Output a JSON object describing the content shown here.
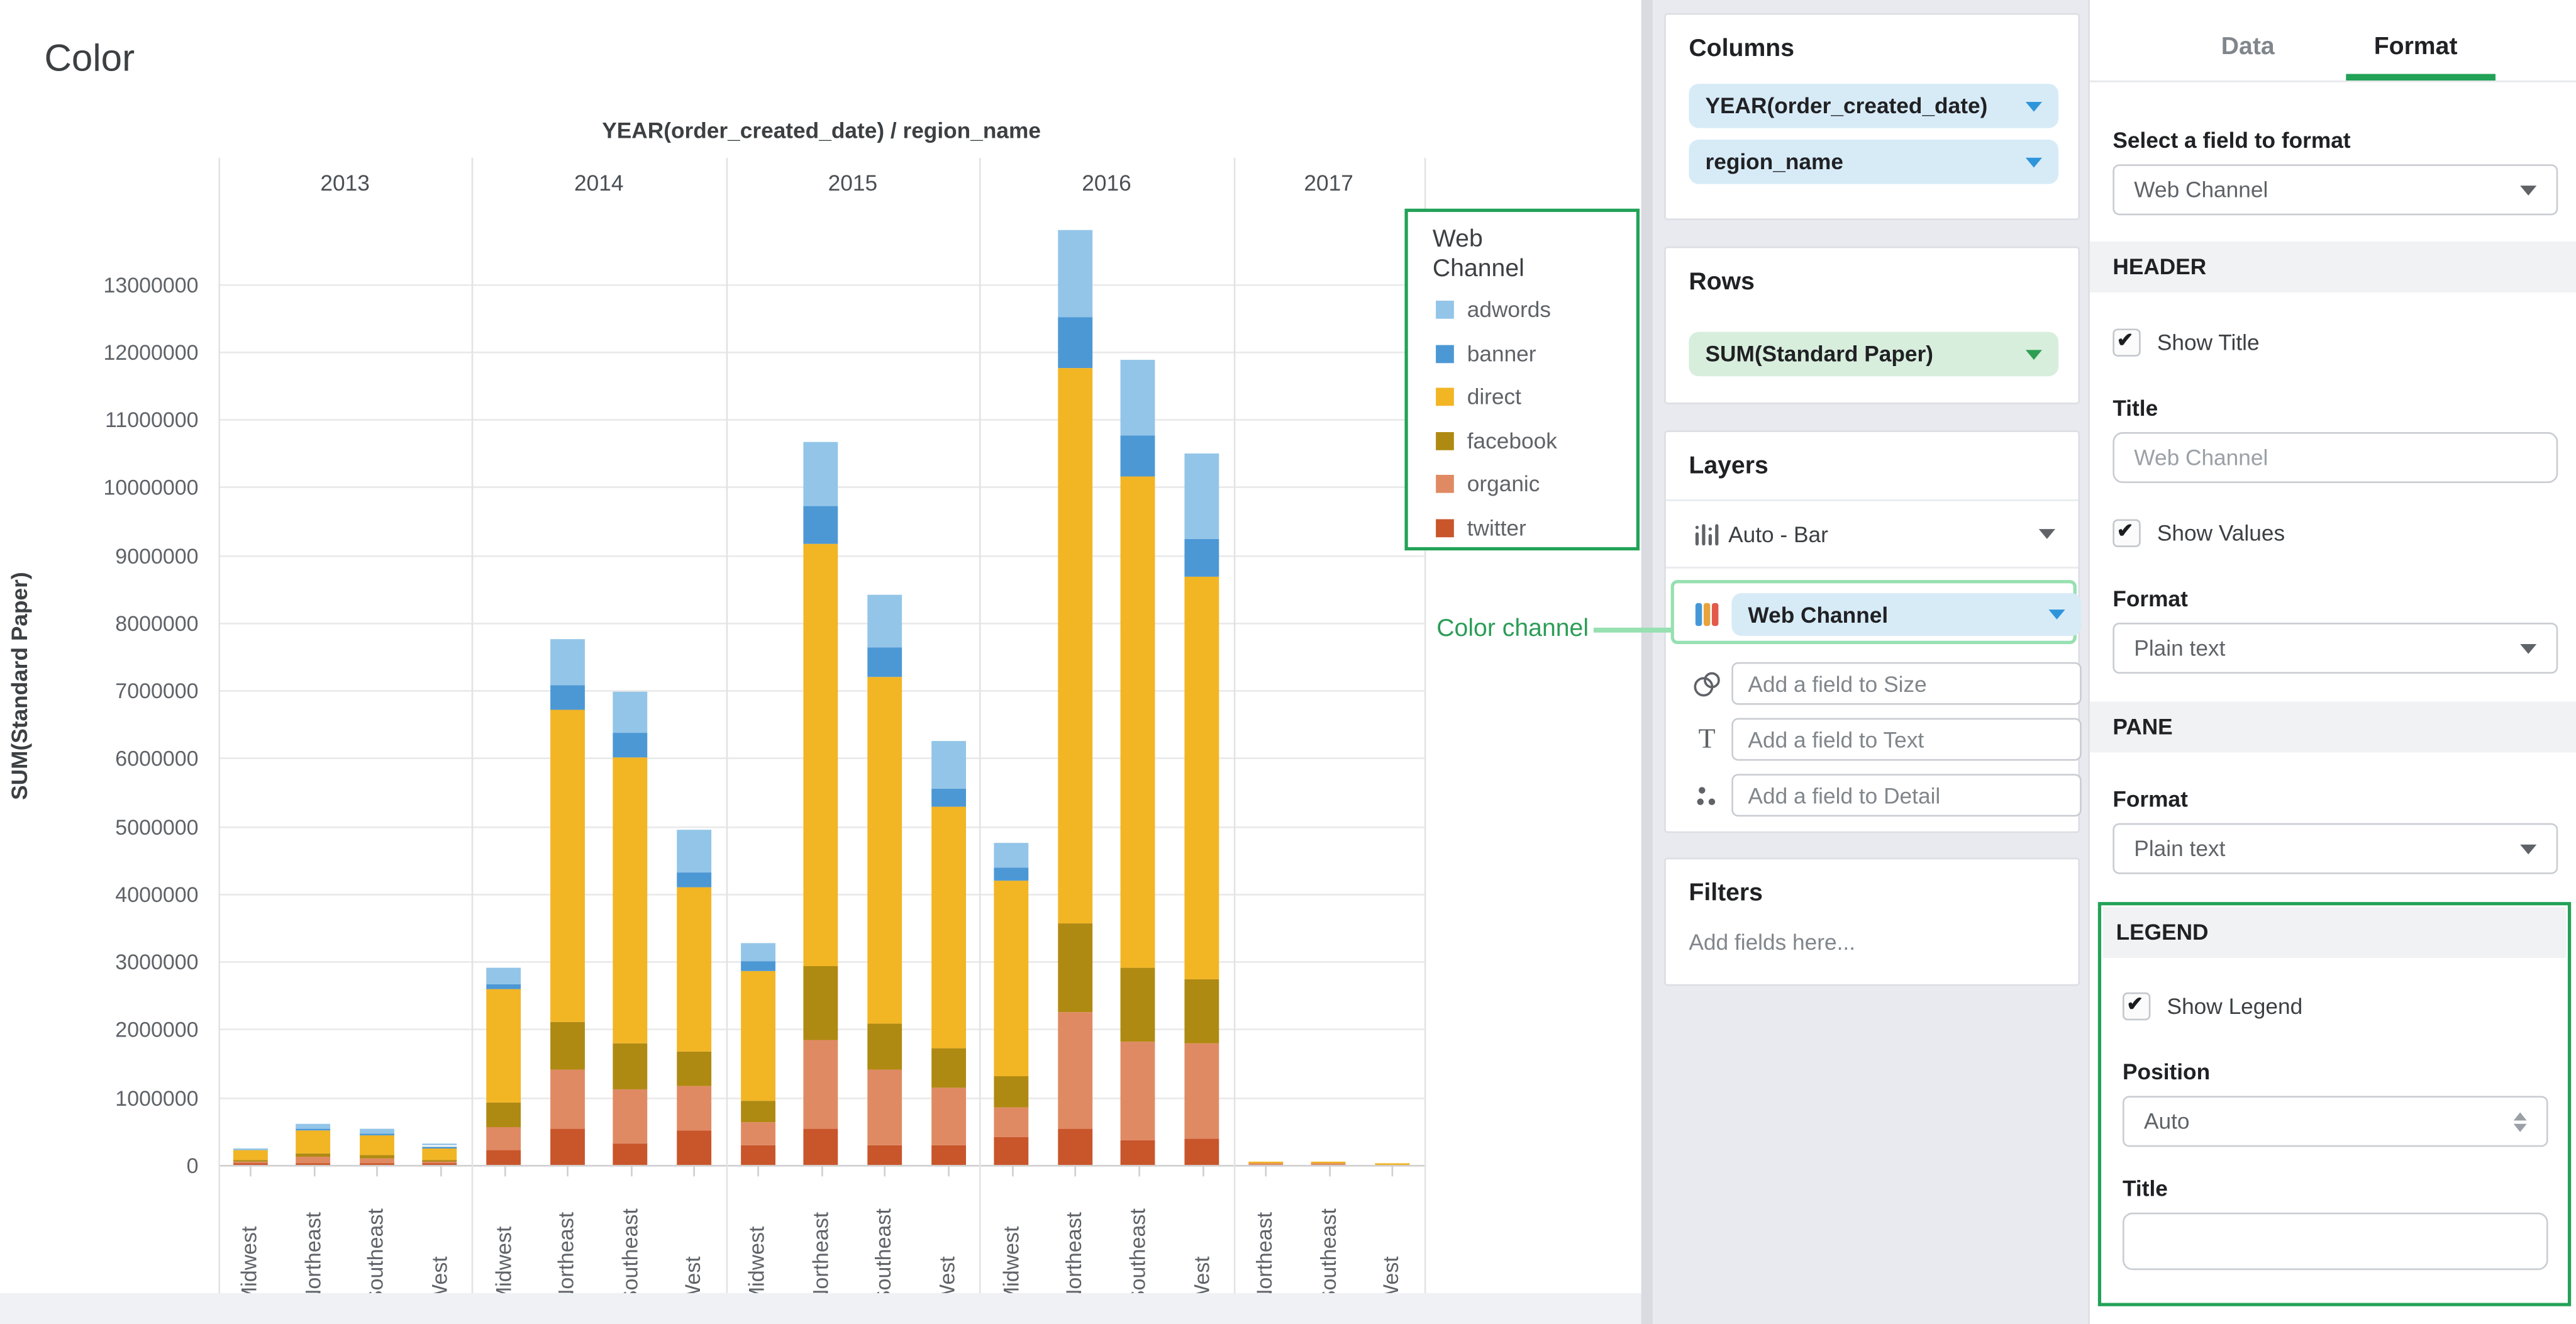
{
  "chart": {
    "title": "Color",
    "facet_title": "YEAR(order_created_date) / region_name",
    "y_axis_title": "SUM(Standard Paper)"
  },
  "chart_data": {
    "type": "bar",
    "stacked": true,
    "title": "Color",
    "xlabel": "YEAR(order_created_date) / region_name",
    "ylabel": "SUM(Standard Paper)",
    "ylim": [
      0,
      13000000
    ],
    "ytick_step": 1000000,
    "grid": true,
    "legend_title": "Web Channel",
    "legend_position": "right",
    "legend_order": [
      "adwords",
      "banner",
      "direct",
      "facebook",
      "organic",
      "twitter"
    ],
    "stack_order_bottom_to_top": [
      "twitter",
      "organic",
      "facebook",
      "direct",
      "banner",
      "adwords"
    ],
    "series_colors": {
      "adwords": "#93C5E8",
      "banner": "#4C98D5",
      "direct": "#F2B524",
      "facebook": "#AF8A12",
      "organic": "#E08A63",
      "twitter": "#C9552B"
    },
    "groups": [
      {
        "year": "2013",
        "bars": [
          {
            "region": "Midwest",
            "values": {
              "twitter": 10000,
              "organic": 30000,
              "facebook": 10000,
              "direct": 160000,
              "banner": 5000,
              "adwords": 10000
            }
          },
          {
            "region": "Northeast",
            "values": {
              "twitter": 20000,
              "organic": 95000,
              "facebook": 45000,
              "direct": 355000,
              "banner": 20000,
              "adwords": 75000
            }
          },
          {
            "region": "Southeast",
            "values": {
              "twitter": 15000,
              "organic": 85000,
              "facebook": 30000,
              "direct": 310000,
              "banner": 15000,
              "adwords": 70000
            }
          },
          {
            "region": "West",
            "values": {
              "twitter": 10000,
              "organic": 45000,
              "facebook": 10000,
              "direct": 185000,
              "banner": 5000,
              "adwords": 25000
            }
          }
        ]
      },
      {
        "year": "2014",
        "bars": [
          {
            "region": "Midwest",
            "values": {
              "twitter": 210000,
              "organic": 350000,
              "facebook": 350000,
              "direct": 1680000,
              "banner": 80000,
              "adwords": 240000
            }
          },
          {
            "region": "Northeast",
            "values": {
              "twitter": 530000,
              "organic": 880000,
              "facebook": 700000,
              "direct": 4600000,
              "banner": 370000,
              "adwords": 670000
            }
          },
          {
            "region": "Southeast",
            "values": {
              "twitter": 320000,
              "organic": 800000,
              "facebook": 670000,
              "direct": 4230000,
              "banner": 360000,
              "adwords": 600000
            }
          },
          {
            "region": "West",
            "values": {
              "twitter": 500000,
              "organic": 650000,
              "facebook": 530000,
              "direct": 2410000,
              "banner": 210000,
              "adwords": 630000
            }
          }
        ]
      },
      {
        "year": "2015",
        "bars": [
          {
            "region": "Midwest",
            "values": {
              "twitter": 290000,
              "organic": 340000,
              "facebook": 320000,
              "direct": 1910000,
              "banner": 140000,
              "adwords": 270000
            }
          },
          {
            "region": "Northeast",
            "values": {
              "twitter": 530000,
              "organic": 1320000,
              "facebook": 1080000,
              "direct": 6240000,
              "banner": 550000,
              "adwords": 950000
            }
          },
          {
            "region": "Southeast",
            "values": {
              "twitter": 290000,
              "organic": 1100000,
              "facebook": 700000,
              "direct": 5110000,
              "banner": 430000,
              "adwords": 770000
            }
          },
          {
            "region": "West",
            "values": {
              "twitter": 290000,
              "organic": 840000,
              "facebook": 580000,
              "direct": 3570000,
              "banner": 260000,
              "adwords": 720000
            }
          }
        ]
      },
      {
        "year": "2016",
        "bars": [
          {
            "region": "Midwest",
            "values": {
              "twitter": 410000,
              "organic": 430000,
              "facebook": 470000,
              "direct": 2880000,
              "banner": 200000,
              "adwords": 360000
            }
          },
          {
            "region": "Northeast",
            "values": {
              "twitter": 530000,
              "organic": 1720000,
              "facebook": 1310000,
              "direct": 8200000,
              "banner": 750000,
              "adwords": 1290000
            }
          },
          {
            "region": "Southeast",
            "values": {
              "twitter": 370000,
              "organic": 1450000,
              "facebook": 1090000,
              "direct": 7250000,
              "banner": 610000,
              "adwords": 1100000
            }
          },
          {
            "region": "West",
            "values": {
              "twitter": 390000,
              "organic": 1400000,
              "facebook": 950000,
              "direct": 5930000,
              "banner": 560000,
              "adwords": 1270000
            }
          }
        ]
      },
      {
        "year": "2017",
        "bars": [
          {
            "region": "Northeast",
            "values": {
              "twitter": 0,
              "organic": 5000,
              "facebook": 0,
              "direct": 20000,
              "banner": 0,
              "adwords": 0
            }
          },
          {
            "region": "Southeast",
            "values": {
              "twitter": 0,
              "organic": 5000,
              "facebook": 0,
              "direct": 35000,
              "banner": 0,
              "adwords": 0
            }
          },
          {
            "region": "West",
            "values": {
              "twitter": 0,
              "organic": 3000,
              "facebook": 0,
              "direct": 9000,
              "banner": 0,
              "adwords": 0
            }
          }
        ]
      }
    ]
  },
  "annotation": {
    "label": "Color channel"
  },
  "shelves": {
    "columns": {
      "title": "Columns",
      "pills": [
        {
          "label": "YEAR(order_created_date)"
        },
        {
          "label": "region_name"
        }
      ]
    },
    "rows": {
      "title": "Rows",
      "pills": [
        {
          "label": "SUM(Standard Paper)"
        }
      ]
    },
    "layers": {
      "title": "Layers",
      "chart_type_label": "Auto - Bar",
      "color_field_label": "Web Channel",
      "size_placeholder": "Add a field to Size",
      "text_placeholder": "Add a field to Text",
      "detail_placeholder": "Add a field to Detail",
      "text_icon_char": "T"
    },
    "filters": {
      "title": "Filters",
      "placeholder": "Add fields here..."
    }
  },
  "format_panel": {
    "tabs": [
      {
        "label": "Data",
        "active": false
      },
      {
        "label": "Format",
        "active": true
      }
    ],
    "field_select_label": "Select a field to format",
    "field_select_value": "Web Channel",
    "header_section": {
      "title": "HEADER",
      "show_title_label": "Show Title",
      "show_title_checked": true,
      "title_label": "Title",
      "title_placeholder": "Web Channel",
      "title_value": "",
      "show_values_label": "Show Values",
      "show_values_checked": true,
      "format_label": "Format",
      "format_value": "Plain text"
    },
    "pane_section": {
      "title": "PANE",
      "format_label": "Format",
      "format_value": "Plain text"
    },
    "legend_section": {
      "title": "LEGEND",
      "show_legend_label": "Show Legend",
      "show_legend_checked": true,
      "position_label": "Position",
      "position_value": "Auto",
      "title_label": "Title",
      "title_value": ""
    }
  },
  "ui_colors": {
    "accent_green": "#22A257",
    "annotation_green": "#2B9D57",
    "highlight_light_green": "#97E0B1",
    "pill_blue_bg": "#D7EBF7",
    "pill_green_bg": "#D8EEDD",
    "panel_bg": "#E9EAEF"
  }
}
